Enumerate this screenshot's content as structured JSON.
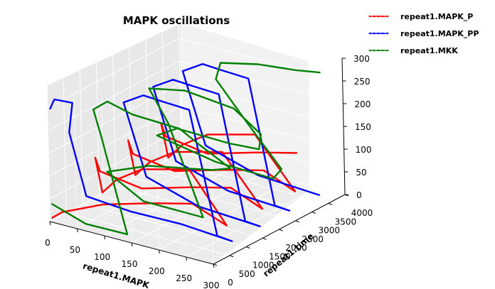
{
  "chart_data": {
    "type": "line",
    "projection": "3d",
    "title": "MAPK oscillations",
    "xlabel": "repeat1.MAPK",
    "ylabel": "repeat1.time",
    "zlabel": "",
    "xlim": [
      0,
      300
    ],
    "ylim": [
      0,
      4000
    ],
    "zlim": [
      0,
      300
    ],
    "x_ticks": [
      "0",
      "50",
      "100",
      "150",
      "200",
      "250",
      "300"
    ],
    "y_ticks": [
      "0",
      "500",
      "1000",
      "1500",
      "2000",
      "2500",
      "3000",
      "3500",
      "4000"
    ],
    "z_ticks": [
      "0",
      "50",
      "100",
      "150",
      "200",
      "250",
      "300"
    ],
    "legend_position": "top-right",
    "grid": true,
    "series": [
      {
        "name": "repeat1.MAPK_P",
        "color": "#ff0000",
        "points": [
          [
            5,
            0,
            10
          ],
          [
            20,
            50,
            25
          ],
          [
            90,
            150,
            60
          ],
          [
            170,
            350,
            80
          ],
          [
            230,
            550,
            90
          ],
          [
            280,
            750,
            50
          ],
          [
            210,
            800,
            150
          ],
          [
            120,
            850,
            120
          ],
          [
            70,
            900,
            80
          ],
          [
            40,
            950,
            40
          ],
          [
            25,
            1000,
            110
          ],
          [
            30,
            1050,
            80
          ],
          [
            100,
            1150,
            60
          ],
          [
            180,
            1350,
            80
          ],
          [
            240,
            1550,
            90
          ],
          [
            285,
            1750,
            50
          ],
          [
            210,
            1800,
            150
          ],
          [
            120,
            1850,
            120
          ],
          [
            70,
            1900,
            80
          ],
          [
            40,
            1950,
            40
          ],
          [
            25,
            2000,
            110
          ],
          [
            30,
            2050,
            80
          ],
          [
            100,
            2150,
            60
          ],
          [
            180,
            2350,
            80
          ],
          [
            240,
            2550,
            90
          ],
          [
            285,
            2750,
            50
          ],
          [
            210,
            2800,
            150
          ],
          [
            120,
            2850,
            120
          ],
          [
            70,
            2900,
            80
          ],
          [
            40,
            2950,
            40
          ],
          [
            25,
            3000,
            110
          ],
          [
            30,
            3050,
            80
          ],
          [
            100,
            3150,
            60
          ],
          [
            180,
            3350,
            80
          ],
          [
            240,
            3550,
            90
          ]
        ]
      },
      {
        "name": "repeat1.MAPK_PP",
        "color": "#0000ff",
        "points": [
          [
            5,
            0,
            250
          ],
          [
            10,
            50,
            270
          ],
          [
            40,
            100,
            270
          ],
          [
            30,
            150,
            200
          ],
          [
            50,
            300,
            60
          ],
          [
            120,
            500,
            40
          ],
          [
            200,
            700,
            30
          ],
          [
            280,
            900,
            10
          ],
          [
            250,
            950,
            10
          ],
          [
            200,
            1000,
            270
          ],
          [
            150,
            1050,
            270
          ],
          [
            110,
            1100,
            270
          ],
          [
            70,
            1150,
            240
          ],
          [
            100,
            1300,
            80
          ],
          [
            180,
            1550,
            30
          ],
          [
            280,
            1750,
            10
          ],
          [
            250,
            1800,
            10
          ],
          [
            200,
            1900,
            270
          ],
          [
            150,
            1950,
            270
          ],
          [
            110,
            2000,
            270
          ],
          [
            70,
            2050,
            240
          ],
          [
            100,
            2200,
            80
          ],
          [
            180,
            2450,
            30
          ],
          [
            280,
            2650,
            10
          ],
          [
            250,
            2700,
            10
          ],
          [
            200,
            2800,
            270
          ],
          [
            150,
            2850,
            270
          ],
          [
            110,
            2900,
            270
          ],
          [
            70,
            2950,
            240
          ],
          [
            100,
            3100,
            80
          ],
          [
            180,
            3350,
            30
          ],
          [
            280,
            3550,
            10
          ]
        ]
      },
      {
        "name": "repeat1.MKK",
        "color": "#008000",
        "points": [
          [
            5,
            0,
            40
          ],
          [
            60,
            100,
            10
          ],
          [
            130,
            200,
            5
          ],
          [
            80,
            300,
            200
          ],
          [
            60,
            400,
            250
          ],
          [
            80,
            500,
            270
          ],
          [
            120,
            600,
            250
          ],
          [
            200,
            700,
            240
          ],
          [
            230,
            800,
            210
          ],
          [
            280,
            900,
            170
          ],
          [
            240,
            1000,
            150
          ],
          [
            120,
            1050,
            120
          ],
          [
            40,
            1100,
            80
          ],
          [
            100,
            1200,
            30
          ],
          [
            200,
            1350,
            20
          ],
          [
            130,
            1500,
            200
          ],
          [
            90,
            1600,
            260
          ],
          [
            150,
            1700,
            270
          ],
          [
            230,
            1850,
            250
          ],
          [
            270,
            2000,
            200
          ],
          [
            260,
            2100,
            160
          ],
          [
            200,
            2200,
            150
          ],
          [
            100,
            2250,
            150
          ],
          [
            60,
            2300,
            120
          ],
          [
            160,
            2400,
            90
          ],
          [
            260,
            2500,
            80
          ],
          [
            270,
            2600,
            100
          ],
          [
            200,
            2700,
            180
          ],
          [
            140,
            2800,
            250
          ],
          [
            140,
            2950,
            280
          ],
          [
            200,
            3100,
            290
          ],
          [
            260,
            3250,
            290
          ],
          [
            295,
            3400,
            290
          ]
        ]
      }
    ]
  }
}
